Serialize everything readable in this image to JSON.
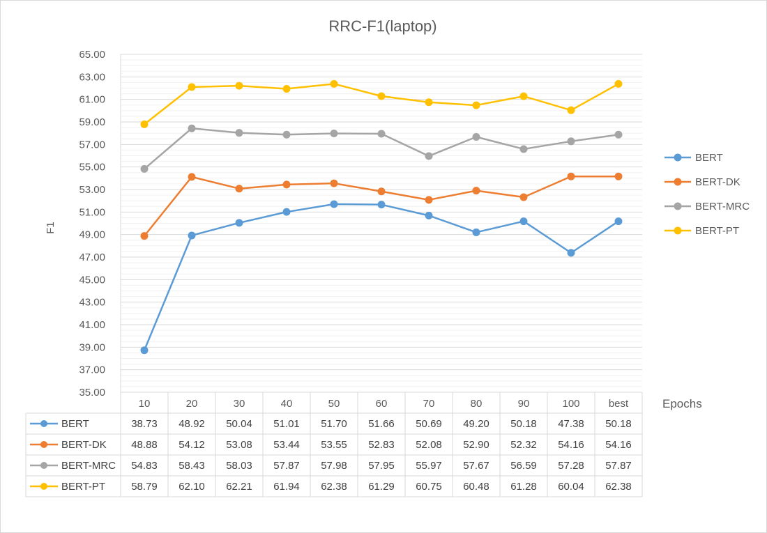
{
  "chart_data": {
    "type": "line",
    "title": "RRC-F1(laptop)",
    "xlabel": "Epochs",
    "ylabel": "F1",
    "ylim": [
      35,
      65
    ],
    "y_ticks": [
      "35.00",
      "37.00",
      "39.00",
      "41.00",
      "43.00",
      "45.00",
      "47.00",
      "49.00",
      "51.00",
      "53.00",
      "55.00",
      "57.00",
      "59.00",
      "61.00",
      "63.00",
      "65.00"
    ],
    "grid": true,
    "legend_position": "right",
    "data_table": true,
    "categories": [
      "10",
      "20",
      "30",
      "40",
      "50",
      "60",
      "70",
      "80",
      "90",
      "100",
      "best"
    ],
    "series": [
      {
        "name": "BERT",
        "color": "#5b9bd5",
        "values": [
          38.73,
          48.92,
          50.04,
          51.01,
          51.7,
          51.66,
          50.69,
          49.2,
          50.18,
          47.38,
          50.18
        ],
        "labels": [
          "38.73",
          "48.92",
          "50.04",
          "51.01",
          "51.70",
          "51.66",
          "50.69",
          "49.20",
          "50.18",
          "47.38",
          "50.18"
        ]
      },
      {
        "name": "BERT-DK",
        "color": "#ed7d31",
        "values": [
          48.88,
          54.12,
          53.08,
          53.44,
          53.55,
          52.83,
          52.08,
          52.9,
          52.32,
          54.16,
          54.16
        ],
        "labels": [
          "48.88",
          "54.12",
          "53.08",
          "53.44",
          "53.55",
          "52.83",
          "52.08",
          "52.90",
          "52.32",
          "54.16",
          "54.16"
        ]
      },
      {
        "name": "BERT-MRC",
        "color": "#a5a5a5",
        "values": [
          54.83,
          58.43,
          58.03,
          57.87,
          57.98,
          57.95,
          55.97,
          57.67,
          56.59,
          57.28,
          57.87
        ],
        "labels": [
          "54.83",
          "58.43",
          "58.03",
          "57.87",
          "57.98",
          "57.95",
          "55.97",
          "57.67",
          "56.59",
          "57.28",
          "57.87"
        ]
      },
      {
        "name": "BERT-PT",
        "color": "#ffc000",
        "values": [
          58.79,
          62.1,
          62.21,
          61.94,
          62.38,
          61.29,
          60.75,
          60.48,
          61.28,
          60.04,
          62.38
        ],
        "labels": [
          "58.79",
          "62.10",
          "62.21",
          "61.94",
          "62.38",
          "61.29",
          "60.75",
          "60.48",
          "61.28",
          "60.04",
          "62.38"
        ]
      }
    ]
  }
}
